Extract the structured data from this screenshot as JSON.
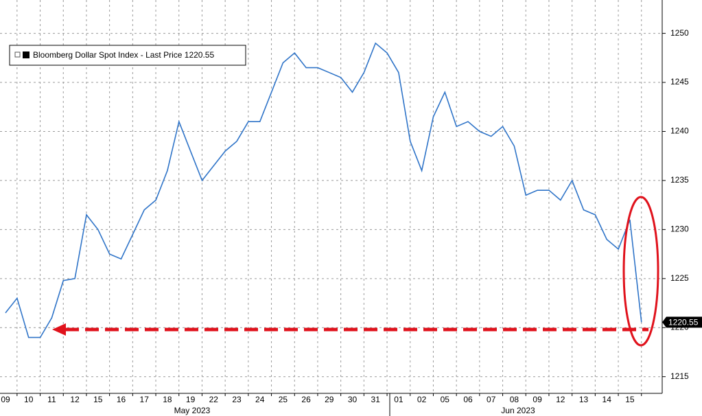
{
  "chart_data": {
    "type": "line",
    "categories": [
      "09",
      null,
      "10",
      null,
      "11",
      null,
      "12",
      null,
      "15",
      null,
      "16",
      null,
      "17",
      null,
      "18",
      null,
      "19",
      null,
      "22",
      null,
      "23",
      null,
      "24",
      null,
      "25",
      null,
      "26",
      null,
      "29",
      null,
      "30",
      null,
      "31",
      null,
      "01",
      null,
      "02",
      null,
      "05",
      null,
      "06",
      null,
      "07",
      null,
      "08",
      null,
      "09",
      null,
      "12",
      null,
      "13",
      null,
      "14",
      null,
      "15",
      null
    ],
    "series": [
      {
        "name": "Bloomberg Dollar Spot Index - Last Price 1220.55",
        "color": "#2f74c8",
        "values": [
          1221.5,
          1223,
          1219,
          1219,
          1221,
          1224.8,
          1225,
          1231.5,
          1230,
          1227.5,
          1227,
          1229.5,
          1232,
          1233,
          1236,
          1241,
          1238,
          1235,
          1236.5,
          1238,
          1239,
          1241,
          1241,
          1244,
          1247,
          1248,
          1246.5,
          1246.5,
          1246,
          1245.5,
          1244,
          1246,
          1249,
          1248,
          1246,
          1239,
          1236,
          1241.5,
          1244,
          1240.5,
          1241,
          1240,
          1239.5,
          1240.5,
          1238.5,
          1233.5,
          1234,
          1234,
          1233,
          1235,
          1232,
          1231.5,
          1229,
          1228,
          1231,
          1220.55
        ]
      }
    ],
    "months": [
      "May 2023",
      "Jun 2023"
    ],
    "last_price": 1220.55,
    "ylim": [
      1213.3,
      1253.4
    ],
    "yticks": [
      1215,
      1220,
      1225,
      1230,
      1235,
      1240,
      1245,
      1250
    ],
    "grid": true
  }
}
